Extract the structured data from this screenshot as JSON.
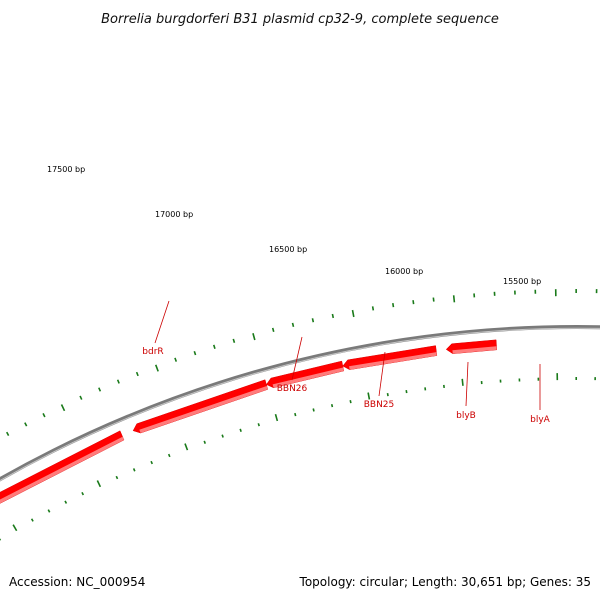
{
  "title": "Borrelia burgdorferi B31 plasmid cp32-9, complete sequence",
  "accession": "Accession: NC_000954",
  "summary": "Topology: circular; Length: 30,651 bp; Genes: 35",
  "colors": {
    "backbone": "#7a7a7a",
    "gene_fill": "#ff0000",
    "gene_highlight": "#ff8888",
    "tick": "#1a7a1a",
    "label_line": "#cc0000",
    "label_text": "#cc0000"
  },
  "ticks": {
    "labels": [
      "17500 bp",
      "17000 bp",
      "16500 bp",
      "16000 bp",
      "15500 bp"
    ]
  },
  "genes": [
    {
      "label": "",
      "strand": "forward"
    },
    {
      "label": "bdrR",
      "strand": "reverse"
    },
    {
      "label": "BBN26",
      "strand": "reverse"
    },
    {
      "label": "BBN25",
      "strand": "reverse"
    },
    {
      "label": "blyB",
      "strand": "reverse"
    },
    {
      "label": "blyA",
      "strand": "reverse"
    }
  ]
}
